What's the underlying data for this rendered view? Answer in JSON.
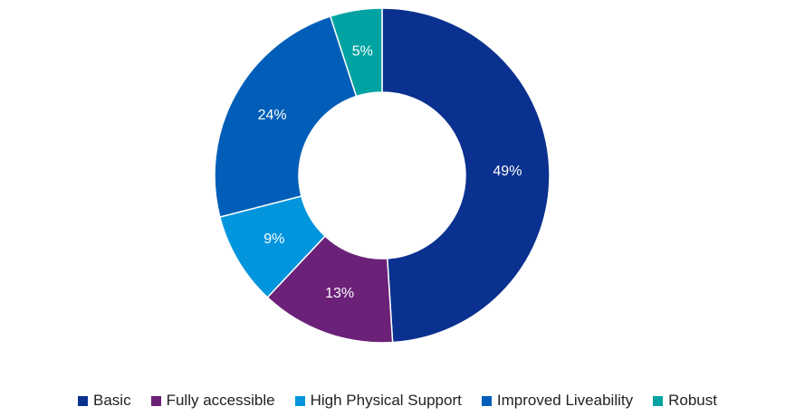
{
  "chart_data": {
    "type": "pie",
    "donut": true,
    "title": "",
    "series": [
      {
        "name": "Basic",
        "value": 49,
        "label": "49%",
        "color": "#0A318F"
      },
      {
        "name": "Fully accessible",
        "value": 13,
        "label": "13%",
        "color": "#6B2178"
      },
      {
        "name": "High Physical Support",
        "value": 9,
        "label": "9%",
        "color": "#0095DC"
      },
      {
        "name": "Improved Liveability",
        "value": 24,
        "label": "24%",
        "color": "#005EB8"
      },
      {
        "name": "Robust",
        "value": 5,
        "label": "5%",
        "color": "#00A3A1"
      }
    ],
    "legend_position": "bottom"
  }
}
